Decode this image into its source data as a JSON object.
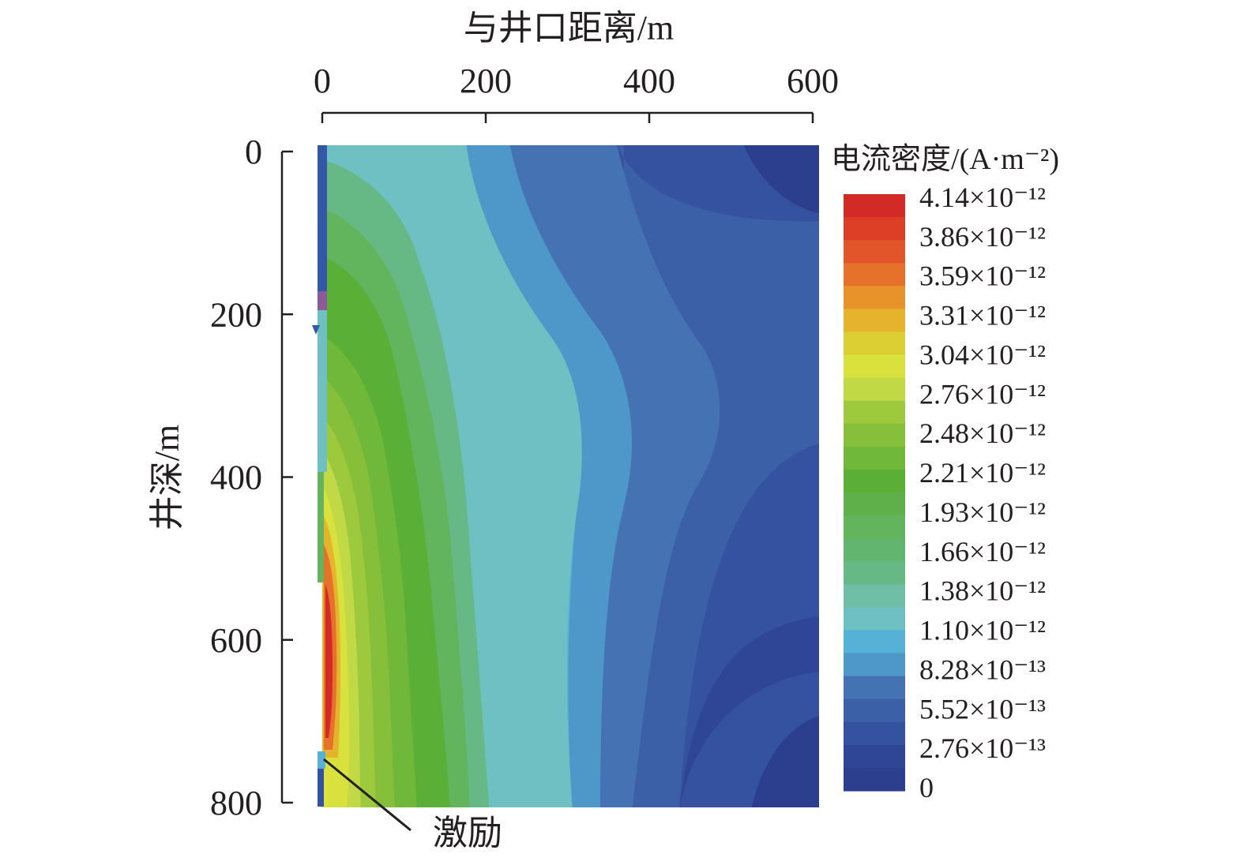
{
  "chart_data": {
    "type": "heatmap",
    "title": "",
    "xlabel": "与井口距离/m",
    "ylabel": "井深/m",
    "x_ticks": [
      0,
      200,
      400,
      600
    ],
    "y_ticks": [
      0,
      200,
      400,
      600,
      800
    ],
    "xlim": [
      0,
      600
    ],
    "ylim": [
      0,
      800
    ],
    "x_axis_position": "top",
    "y_axis_inverted": true,
    "grid": false,
    "colorbar": {
      "title": "电流密度/(A·m⁻²)",
      "labels": [
        "4.14×10⁻¹²",
        "3.86×10⁻¹²",
        "3.59×10⁻¹²",
        "3.31×10⁻¹²",
        "3.04×10⁻¹²",
        "2.76×10⁻¹²",
        "2.48×10⁻¹²",
        "2.21×10⁻¹²",
        "1.93×10⁻¹²",
        "1.66×10⁻¹²",
        "1.38×10⁻¹²",
        "1.10×10⁻¹²",
        "8.28×10⁻¹³",
        "5.52×10⁻¹³",
        "2.76×10⁻¹³",
        "0"
      ],
      "levels": [
        4.14e-12,
        3.86e-12,
        3.59e-12,
        3.31e-12,
        3.04e-12,
        2.76e-12,
        2.48e-12,
        2.21e-12,
        1.93e-12,
        1.66e-12,
        1.38e-12,
        1.1e-12,
        8.28e-13,
        5.52e-13,
        2.76e-13,
        0
      ],
      "colors": [
        "#d42a27",
        "#dd3e26",
        "#e2542a",
        "#e5712a",
        "#e8922a",
        "#e6b32c",
        "#dccf33",
        "#d9e23c",
        "#c2d946",
        "#9dc93c",
        "#86c03a",
        "#6fb83a",
        "#5aaf37",
        "#5fb04a",
        "#62b45d",
        "#62b56f",
        "#66b885",
        "#6fbfa6",
        "#6ec0c3",
        "#55b1d6",
        "#4d98c9",
        "#4472b3",
        "#3b60a8",
        "#34529f",
        "#2f4596",
        "#2c3f8f"
      ],
      "position": "right"
    },
    "annotations": [
      {
        "text": "激励",
        "x": 0,
        "y": 750
      }
    ]
  }
}
